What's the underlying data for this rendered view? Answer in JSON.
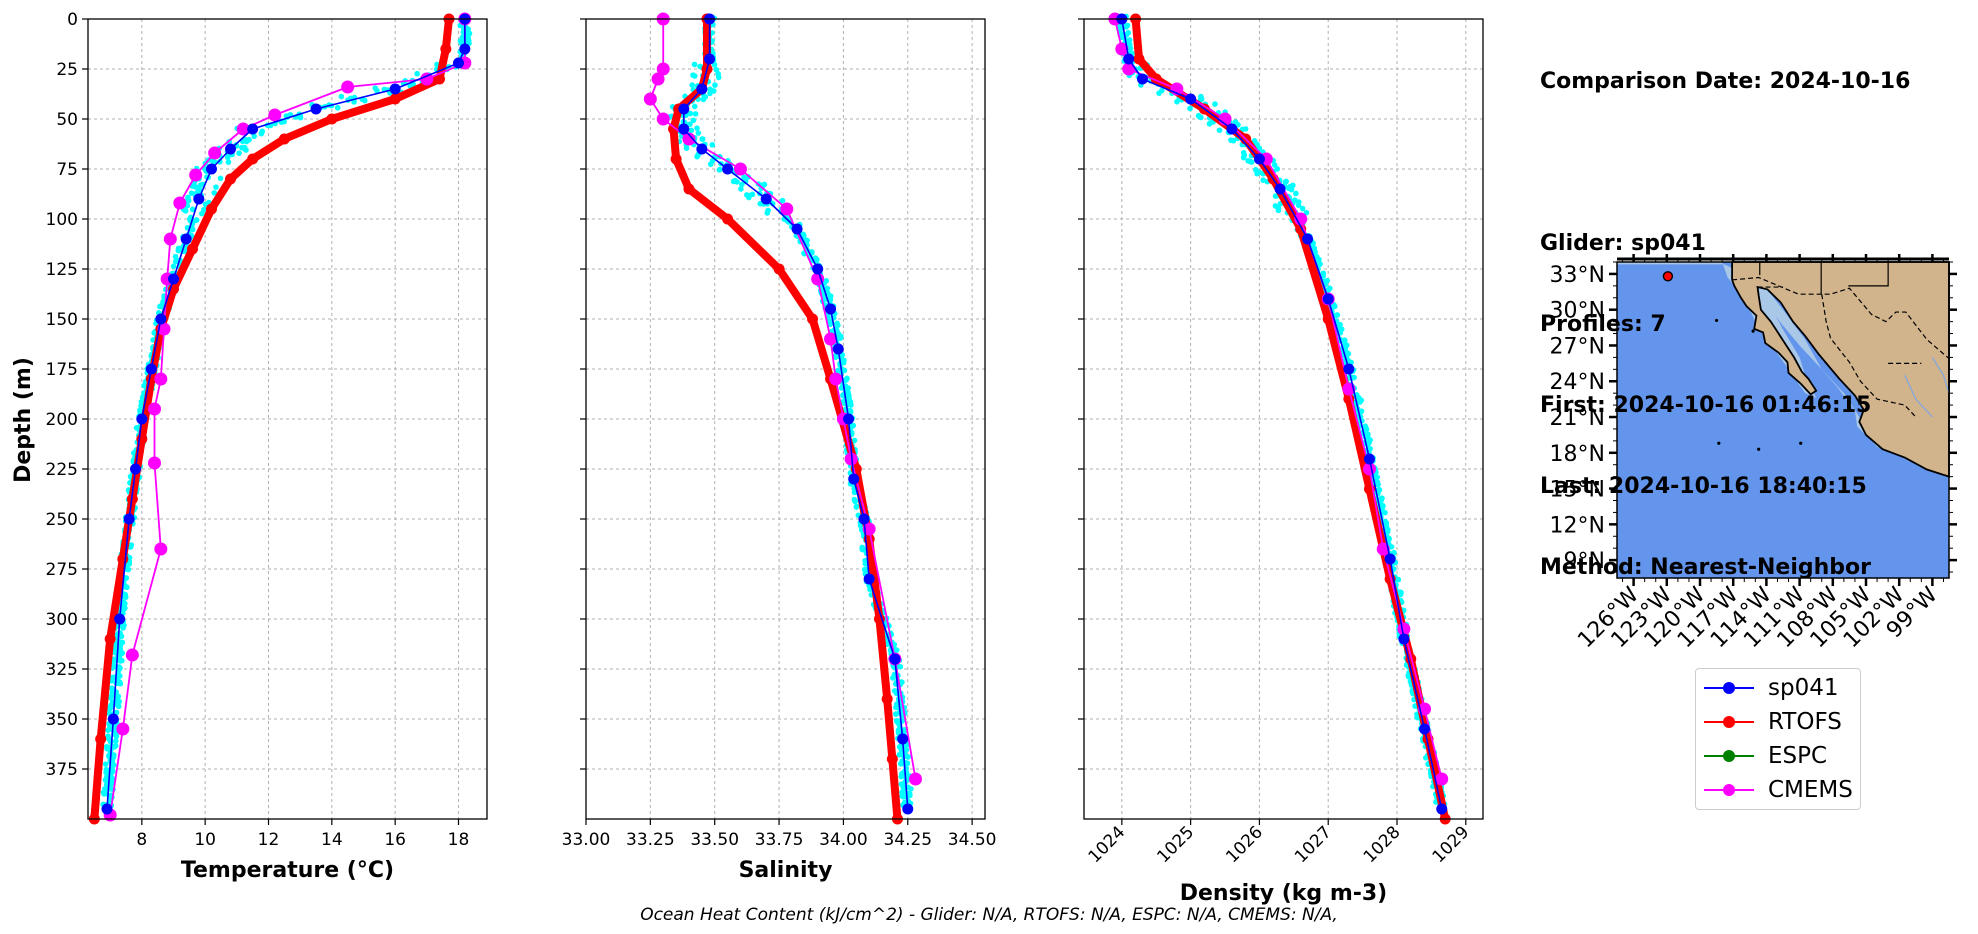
{
  "info": {
    "comparison_date": "Comparison Date: 2024-10-16",
    "glider": "Glider: sp041",
    "profiles": "Profiles: 7",
    "first": "First: 2024-10-16 01:46:15",
    "last": "Last: 2024-10-16 18:40:15",
    "method": "Method: Nearest-Neighbor"
  },
  "footer": "Ocean Heat Content (kJ/cm^2) - Glider: N/A,  RTOFS: N/A,  ESPC: N/A,  CMEMS: N/A,",
  "legend": [
    {
      "name": "sp041",
      "color": "#0000ff"
    },
    {
      "name": "RTOFS",
      "color": "#ff0000"
    },
    {
      "name": "ESPC",
      "color": "#008000"
    },
    {
      "name": "CMEMS",
      "color": "#ff00ff"
    }
  ],
  "colors": {
    "glider_raw": "#00ffff",
    "glider": "#0000ff",
    "rtofs": "#ff0000",
    "cmems": "#ff00ff",
    "ocean": "#6495ed",
    "land": "#d2b48c",
    "shelf": "#a9c8e8"
  },
  "chart_data": [
    {
      "type": "line",
      "xlabel": "Temperature (°C)",
      "ylabel": "Depth (m)",
      "xlim": [
        6.3,
        18.9
      ],
      "ylim": [
        400,
        0
      ],
      "xticks": [
        "8",
        "10",
        "12",
        "14",
        "16",
        "18"
      ],
      "yticks": [
        "0",
        "25",
        "50",
        "75",
        "100",
        "125",
        "150",
        "175",
        "200",
        "225",
        "250",
        "275",
        "300",
        "325",
        "350",
        "375"
      ],
      "grid": true,
      "series": [
        {
          "name": "sp041",
          "x": [
            18.2,
            18.2,
            18.0,
            16.0,
            13.5,
            11.5,
            10.8,
            10.2,
            9.8,
            9.4,
            9.0,
            8.6,
            8.3,
            8.0,
            7.8,
            7.6,
            7.3,
            7.1,
            6.9
          ],
          "depth": [
            0,
            15,
            22,
            35,
            45,
            55,
            65,
            75,
            90,
            110,
            130,
            150,
            175,
            200,
            225,
            250,
            300,
            350,
            395
          ]
        },
        {
          "name": "RTOFS",
          "x": [
            17.7,
            17.6,
            17.4,
            16.0,
            14.0,
            12.5,
            11.5,
            10.8,
            10.2,
            9.6,
            9.0,
            8.6,
            8.3,
            8.0,
            7.7,
            7.4,
            7.0,
            6.7,
            6.5
          ],
          "depth": [
            0,
            15,
            30,
            40,
            50,
            60,
            70,
            80,
            95,
            115,
            135,
            155,
            180,
            210,
            240,
            270,
            310,
            360,
            400
          ]
        },
        {
          "name": "CMEMS",
          "x": [
            18.2,
            18.2,
            17.0,
            14.5,
            12.2,
            11.2,
            10.3,
            9.7,
            9.2,
            8.9,
            8.8,
            8.7,
            8.6,
            8.4,
            8.4,
            8.6,
            7.7,
            7.4,
            7.0
          ],
          "depth": [
            0,
            22,
            30,
            34,
            48,
            55,
            67,
            78,
            92,
            110,
            130,
            155,
            180,
            195,
            222,
            265,
            318,
            355,
            398
          ]
        }
      ]
    },
    {
      "type": "line",
      "xlabel": "Salinity",
      "xlim": [
        33.0,
        34.55
      ],
      "ylim": [
        400,
        0
      ],
      "xticks": [
        "33.00",
        "33.25",
        "33.50",
        "33.75",
        "34.00",
        "34.25",
        "34.50"
      ],
      "grid": true,
      "series": [
        {
          "name": "sp041",
          "x": [
            33.48,
            33.48,
            33.45,
            33.38,
            33.38,
            33.45,
            33.55,
            33.7,
            33.82,
            33.9,
            33.95,
            33.98,
            34.02,
            34.04,
            34.08,
            34.1,
            34.2,
            34.23,
            34.25
          ],
          "depth": [
            0,
            20,
            35,
            45,
            55,
            65,
            75,
            90,
            105,
            125,
            145,
            165,
            200,
            230,
            250,
            280,
            320,
            360,
            395
          ]
        },
        {
          "name": "RTOFS",
          "x": [
            33.47,
            33.47,
            33.45,
            33.36,
            33.34,
            33.35,
            33.4,
            33.55,
            33.75,
            33.88,
            33.95,
            34.05,
            34.1,
            34.14,
            34.17,
            34.19,
            34.21
          ],
          "depth": [
            0,
            25,
            35,
            45,
            55,
            70,
            85,
            100,
            125,
            150,
            180,
            225,
            260,
            300,
            340,
            370,
            400
          ]
        },
        {
          "name": "CMEMS",
          "x": [
            33.3,
            33.3,
            33.28,
            33.25,
            33.3,
            33.4,
            33.6,
            33.78,
            33.9,
            33.95,
            33.97,
            34.0,
            34.03,
            34.1,
            34.2,
            34.28
          ],
          "depth": [
            0,
            25,
            30,
            40,
            50,
            60,
            75,
            95,
            130,
            160,
            180,
            200,
            220,
            255,
            320,
            380
          ]
        }
      ]
    },
    {
      "type": "line",
      "xlabel": "Density (kg m-3)",
      "xlim": [
        1023.45,
        1029.25
      ],
      "ylim": [
        400,
        0
      ],
      "xticks": [
        "1024",
        "1025",
        "1026",
        "1027",
        "1028",
        "1029"
      ],
      "grid": true,
      "series": [
        {
          "name": "sp041",
          "x": [
            1024.0,
            1024.1,
            1024.3,
            1025.0,
            1025.6,
            1026.0,
            1026.3,
            1026.7,
            1027.0,
            1027.3,
            1027.6,
            1027.9,
            1028.1,
            1028.4,
            1028.65
          ],
          "depth": [
            0,
            20,
            30,
            40,
            55,
            70,
            85,
            110,
            140,
            175,
            220,
            270,
            310,
            355,
            395
          ]
        },
        {
          "name": "RTOFS",
          "x": [
            1024.2,
            1024.25,
            1024.5,
            1025.2,
            1025.8,
            1026.2,
            1026.6,
            1027.0,
            1027.3,
            1027.6,
            1027.9,
            1028.2,
            1028.45,
            1028.7
          ],
          "depth": [
            0,
            20,
            30,
            45,
            60,
            80,
            105,
            150,
            190,
            235,
            280,
            320,
            360,
            400
          ]
        },
        {
          "name": "CMEMS",
          "x": [
            1023.9,
            1024.0,
            1024.1,
            1024.8,
            1025.5,
            1026.1,
            1026.6,
            1027.0,
            1027.3,
            1027.6,
            1027.8,
            1028.1,
            1028.4,
            1028.65
          ],
          "depth": [
            0,
            15,
            25,
            35,
            50,
            70,
            100,
            140,
            185,
            225,
            265,
            305,
            345,
            380
          ]
        }
      ]
    }
  ],
  "map": {
    "lat_ticks": [
      "33°N",
      "30°N",
      "27°N",
      "24°N",
      "21°N",
      "18°N",
      "15°N",
      "12°N",
      "9°N"
    ],
    "lon_ticks": [
      "126°W",
      "123°W",
      "120°W",
      "117°W",
      "114°W",
      "111°W",
      "108°W",
      "105°W",
      "102°W",
      "99°W"
    ],
    "glider_location": {
      "lat": 32.8,
      "lon": -122.9
    }
  }
}
